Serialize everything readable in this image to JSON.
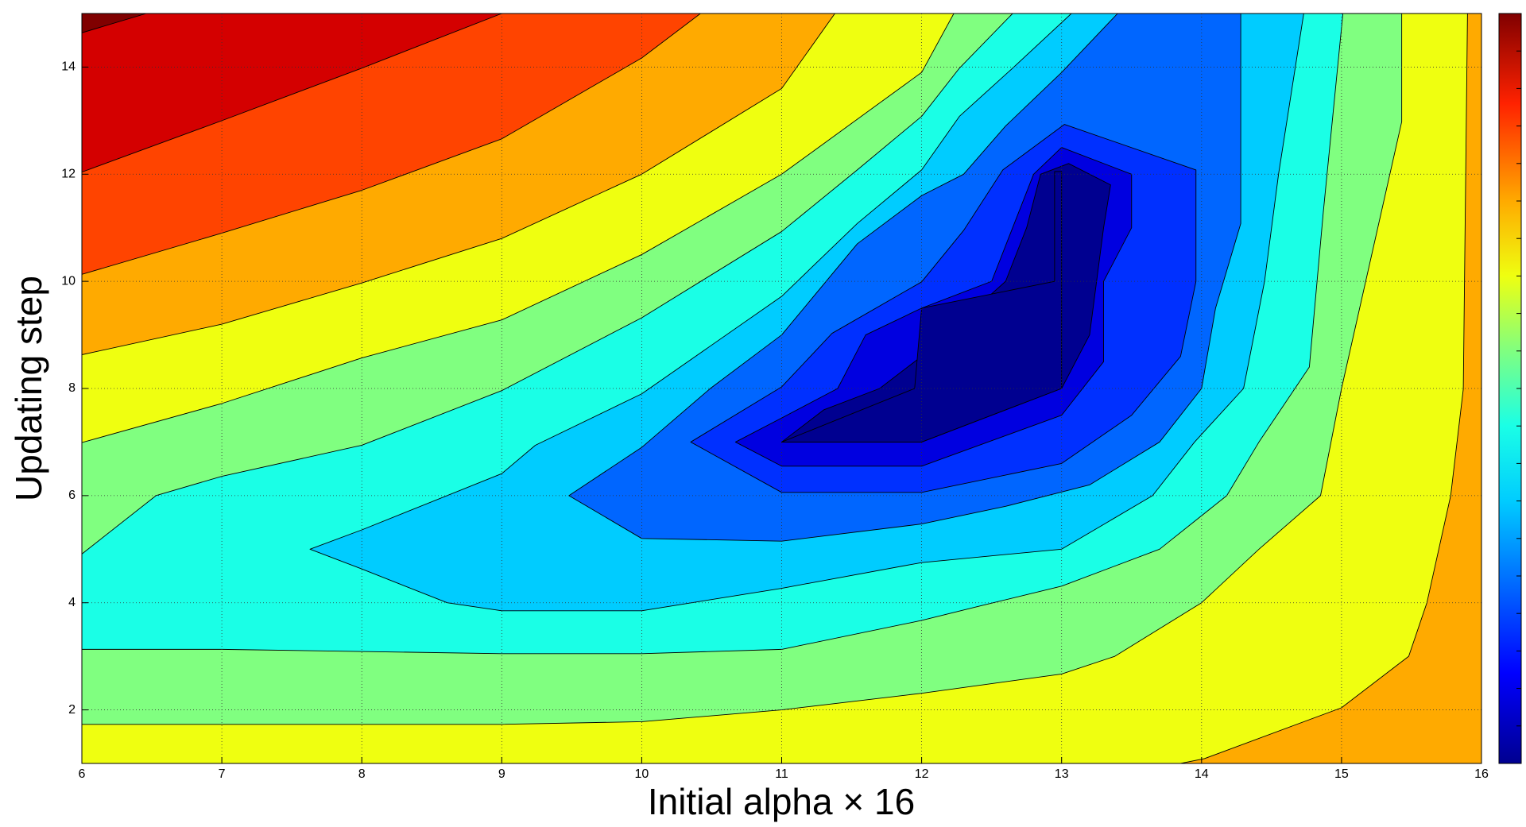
{
  "chart_data": {
    "type": "contour",
    "xlabel": "Initial alpha × 16",
    "ylabel": "Updating step",
    "xlim": [
      6,
      16
    ],
    "ylim": [
      1,
      15
    ],
    "xticks": [
      6,
      7,
      8,
      9,
      10,
      11,
      12,
      13,
      14,
      15,
      16
    ],
    "yticks": [
      2,
      4,
      6,
      8,
      10,
      12,
      14
    ],
    "grid": true,
    "colorbar": true,
    "series": [
      {
        "color": "#efff10",
        "x": [
          6,
          16,
          16,
          6
        ],
        "y": [
          1,
          1,
          15,
          15
        ]
      },
      {
        "color": "#ffaa00",
        "x": [
          6,
          7,
          8,
          9,
          10,
          11,
          11.38,
          6
        ],
        "y": [
          8.63,
          9.2,
          9.97,
          10.8,
          12.0,
          13.6,
          15,
          15
        ]
      },
      {
        "color": "#ff4400",
        "x": [
          6,
          7,
          8,
          9,
          10,
          10.42,
          6
        ],
        "y": [
          10.13,
          10.9,
          11.7,
          12.66,
          14.17,
          15,
          15
        ]
      },
      {
        "color": "#d40000",
        "x": [
          6,
          7,
          8,
          9,
          6
        ],
        "y": [
          12.04,
          13.0,
          13.98,
          15,
          15
        ]
      },
      {
        "color": "#800000",
        "x": [
          6,
          6.46,
          6
        ],
        "y": [
          14.64,
          15,
          15
        ]
      },
      {
        "color": "#ffaa00",
        "x": [
          15.9,
          15.87,
          15.78,
          15.61,
          15.48,
          15.0,
          14.02,
          13.85,
          16,
          16
        ],
        "y": [
          15,
          7.99,
          6.0,
          4.0,
          3.0,
          2.04,
          1.09,
          1,
          1,
          15
        ]
      },
      {
        "color": "#80ff80",
        "x": [
          6,
          9,
          10,
          11,
          12,
          13,
          13.38,
          14,
          14.41,
          14.85,
          15.0,
          15.43,
          15.43,
          12.23,
          12.0,
          11,
          10,
          9,
          8,
          7,
          6
        ],
        "y": [
          1.73,
          1.73,
          1.78,
          2.0,
          2.31,
          2.67,
          3.0,
          4.0,
          5.0,
          6.0,
          8.0,
          12.98,
          15,
          15,
          13.9,
          12,
          10.5,
          9.28,
          8.57,
          7.72,
          6.99
        ]
      },
      {
        "color": "#1affe6",
        "x": [
          6,
          7,
          9,
          10,
          11,
          12,
          12.37,
          13,
          13.7,
          14.18,
          14.41,
          14.77,
          14.87,
          15.01,
          12.65,
          12.27,
          12.0,
          11.54,
          11,
          10,
          9,
          8,
          7,
          6.53,
          6
        ],
        "y": [
          3.13,
          3.13,
          3.05,
          3.05,
          3.13,
          3.67,
          3.91,
          4.31,
          5.0,
          6.0,
          7.0,
          8.4,
          11.3,
          15,
          15,
          13.98,
          13.08,
          12.08,
          10.93,
          9.32,
          7.96,
          6.94,
          6.36,
          6.0,
          4.91
        ]
      },
      {
        "color": "#00ccff",
        "x": [
          7.63,
          8.0,
          8.61,
          9.0,
          10.0,
          11.0,
          12.0,
          13.0,
          13.65,
          13.95,
          14.3,
          14.45,
          14.55,
          14.73,
          13.07,
          12.65,
          12.27,
          12.0,
          11.54,
          11.0,
          10.0,
          9.24,
          9.0,
          8.0
        ],
        "y": [
          5.0,
          4.63,
          4.0,
          3.85,
          3.85,
          4.27,
          4.75,
          5.0,
          6.0,
          7.0,
          8.0,
          10.0,
          12.0,
          15,
          15,
          13.98,
          13.08,
          12.08,
          11.08,
          9.72,
          7.9,
          6.94,
          6.41,
          5.36
        ]
      },
      {
        "color": "#0066ff",
        "x": [
          9.48,
          10.0,
          11.0,
          12.0,
          12.6,
          13.2,
          13.7,
          14.0,
          14.1,
          14.28,
          14.28,
          13.4,
          13.0,
          12.6,
          12.3,
          12.0,
          11.54,
          11.0,
          10.49,
          10.0
        ],
        "y": [
          6.0,
          5.2,
          5.15,
          5.47,
          5.8,
          6.2,
          7.0,
          8.0,
          9.5,
          11.08,
          15,
          15,
          13.9,
          12.9,
          12.0,
          11.6,
          10.7,
          9.0,
          8.0,
          6.9
        ]
      },
      {
        "color": "#0030ff",
        "x": [
          10.35,
          11.0,
          11.36,
          12.0,
          12.3,
          12.58,
          13.02,
          13.96,
          13.96,
          13.85,
          13.5,
          13.0,
          12.0,
          11.0
        ],
        "y": [
          7.0,
          8.03,
          9.03,
          9.99,
          10.95,
          12.08,
          12.93,
          12.08,
          10.0,
          8.6,
          7.5,
          6.6,
          6.06,
          6.06
        ]
      },
      {
        "color": "#0000e0",
        "x": [
          10.67,
          11.0,
          11.4,
          11.6,
          12.0,
          12.5,
          12.65,
          12.8,
          13.0,
          13.5,
          13.5,
          13.3,
          13.3,
          13.0,
          12.0,
          11.0
        ],
        "y": [
          7.0,
          7.45,
          8.0,
          9.0,
          9.5,
          10.0,
          11.0,
          12.0,
          12.5,
          12.0,
          11.0,
          10.0,
          8.5,
          7.5,
          6.55,
          6.55
        ]
      },
      {
        "color": "#000090",
        "x": [
          11.0,
          11.3,
          11.7,
          12.0,
          12.3,
          12.6,
          12.75,
          12.85,
          13.05,
          13.35,
          13.3,
          13.25,
          13.2,
          13.0,
          12.0
        ],
        "y": [
          7.0,
          7.6,
          8.0,
          8.6,
          9.3,
          10.0,
          11.0,
          12.0,
          12.2,
          11.8,
          11.0,
          10.0,
          9.0,
          8.0,
          7.0
        ]
      },
      {
        "color": "#000090",
        "x": [
          11,
          12,
          13,
          13,
          12.95,
          12.95,
          12,
          11.95
        ],
        "y": [
          7,
          7,
          8,
          12.05,
          12.05,
          10,
          9.5,
          8.0
        ]
      }
    ]
  }
}
